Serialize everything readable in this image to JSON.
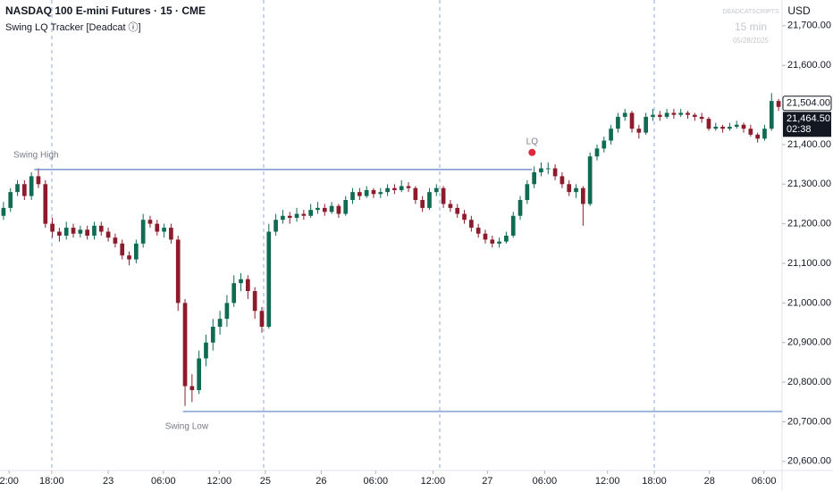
{
  "header": {
    "title": "NASDAQ 100 E-mini Futures · 15 · CME",
    "indicator": "Swing LQ Tracker [Deadcat ⓘ]"
  },
  "watermark": {
    "brand": "DEADCATSCRIPTS",
    "interval": "15 min",
    "date": "05/28/2025"
  },
  "currency": "USD",
  "chart_data": {
    "type": "candlestick",
    "up_color": "#0f6b52",
    "down_color": "#8c1c2c",
    "xlim": [
      0,
      112
    ],
    "ylim": [
      20559,
      21765
    ],
    "xticks": [
      {
        "value": 1.3,
        "label": "2:00"
      },
      {
        "value": 7.4,
        "label": "18:00"
      },
      {
        "value": 15.5,
        "label": "23"
      },
      {
        "value": 23.4,
        "label": "06:00"
      },
      {
        "value": 31.4,
        "label": "12:00"
      },
      {
        "value": 38,
        "label": "25"
      },
      {
        "value": 46,
        "label": "26"
      },
      {
        "value": 53.8,
        "label": "06:00"
      },
      {
        "value": 62,
        "label": "12:00"
      },
      {
        "value": 69.8,
        "label": "27"
      },
      {
        "value": 78,
        "label": "06:00"
      },
      {
        "value": 87,
        "label": "12:00"
      },
      {
        "value": 93.7,
        "label": "18:00"
      },
      {
        "value": 101.6,
        "label": "28"
      },
      {
        "value": 109.4,
        "label": "06:00"
      }
    ],
    "yticks": [
      {
        "value": 20600,
        "label": "20,600.00"
      },
      {
        "value": 20700,
        "label": "20,700.00"
      },
      {
        "value": 20800,
        "label": "20,800.00"
      },
      {
        "value": 20900,
        "label": "20,900.00"
      },
      {
        "value": 21000,
        "label": "21,000.00"
      },
      {
        "value": 21100,
        "label": "21,100.00"
      },
      {
        "value": 21200,
        "label": "21,200.00"
      },
      {
        "value": 21300,
        "label": "21,300.00"
      },
      {
        "value": 21400,
        "label": "21,400.00"
      },
      {
        "value": 21500,
        "label": "21,500.00"
      },
      {
        "value": 21600,
        "label": "21,600.00"
      },
      {
        "value": 21700,
        "label": "21,700.00"
      }
    ],
    "candles": [
      [
        21220,
        21255,
        21210,
        21240
      ],
      [
        21240,
        21290,
        21230,
        21280
      ],
      [
        21280,
        21310,
        21270,
        21300
      ],
      [
        21300,
        21310,
        21260,
        21270
      ],
      [
        21270,
        21330,
        21260,
        21320
      ],
      [
        21320,
        21340,
        21290,
        21300
      ],
      [
        21300,
        21310,
        21190,
        21200
      ],
      [
        21200,
        21215,
        21165,
        21180
      ],
      [
        21180,
        21190,
        21155,
        21170
      ],
      [
        21170,
        21205,
        21160,
        21190
      ],
      [
        21190,
        21200,
        21165,
        21175
      ],
      [
        21175,
        21195,
        21165,
        21185
      ],
      [
        21185,
        21195,
        21160,
        21170
      ],
      [
        21170,
        21205,
        21160,
        21195
      ],
      [
        21195,
        21205,
        21170,
        21180
      ],
      [
        21180,
        21190,
        21155,
        21165
      ],
      [
        21165,
        21175,
        21140,
        21150
      ],
      [
        21150,
        21160,
        21110,
        21120
      ],
      [
        21120,
        21130,
        21095,
        21110
      ],
      [
        21110,
        21160,
        21100,
        21150
      ],
      [
        21150,
        21225,
        21140,
        21210
      ],
      [
        21210,
        21220,
        21190,
        21200
      ],
      [
        21200,
        21210,
        21170,
        21180
      ],
      [
        21180,
        21200,
        21165,
        21190
      ],
      [
        21190,
        21200,
        21150,
        21160
      ],
      [
        21160,
        21170,
        20980,
        21000
      ],
      [
        21000,
        21010,
        20740,
        20790
      ],
      [
        20790,
        20820,
        20750,
        20780
      ],
      [
        20780,
        20880,
        20770,
        20860
      ],
      [
        20860,
        20920,
        20840,
        20900
      ],
      [
        20900,
        20960,
        20880,
        20940
      ],
      [
        20940,
        20980,
        20920,
        20960
      ],
      [
        20960,
        21020,
        20940,
        21000
      ],
      [
        21000,
        21070,
        20990,
        21050
      ],
      [
        21050,
        21075,
        21030,
        21060
      ],
      [
        21060,
        21070,
        21010,
        21030
      ],
      [
        21030,
        21040,
        20960,
        20980
      ],
      [
        20980,
        20990,
        20925,
        20940
      ],
      [
        20940,
        21200,
        20935,
        21180
      ],
      [
        21180,
        21225,
        21170,
        21210
      ],
      [
        21210,
        21235,
        21200,
        21220
      ],
      [
        21220,
        21230,
        21200,
        21215
      ],
      [
        21215,
        21240,
        21205,
        21225
      ],
      [
        21225,
        21235,
        21210,
        21220
      ],
      [
        21220,
        21250,
        21215,
        21235
      ],
      [
        21235,
        21255,
        21225,
        21240
      ],
      [
        21240,
        21250,
        21220,
        21230
      ],
      [
        21230,
        21255,
        21225,
        21245
      ],
      [
        21245,
        21250,
        21215,
        21225
      ],
      [
        21225,
        21270,
        21220,
        21260
      ],
      [
        21260,
        21290,
        21250,
        21280
      ],
      [
        21280,
        21290,
        21260,
        21270
      ],
      [
        21270,
        21295,
        21265,
        21285
      ],
      [
        21285,
        21290,
        21265,
        21275
      ],
      [
        21275,
        21290,
        21265,
        21280
      ],
      [
        21280,
        21300,
        21270,
        21290
      ],
      [
        21290,
        21300,
        21275,
        21285
      ],
      [
        21285,
        21310,
        21280,
        21295
      ],
      [
        21295,
        21305,
        21280,
        21290
      ],
      [
        21290,
        21295,
        21250,
        21260
      ],
      [
        21260,
        21270,
        21230,
        21240
      ],
      [
        21240,
        21290,
        21235,
        21280
      ],
      [
        21280,
        21300,
        21270,
        21290
      ],
      [
        21290,
        21295,
        21240,
        21250
      ],
      [
        21250,
        21260,
        21230,
        21240
      ],
      [
        21240,
        21250,
        21215,
        21225
      ],
      [
        21225,
        21235,
        21200,
        21210
      ],
      [
        21210,
        21220,
        21180,
        21190
      ],
      [
        21190,
        21200,
        21165,
        21175
      ],
      [
        21175,
        21185,
        21150,
        21160
      ],
      [
        21160,
        21170,
        21140,
        21150
      ],
      [
        21150,
        21165,
        21140,
        21155
      ],
      [
        21155,
        21180,
        21150,
        21170
      ],
      [
        21170,
        21230,
        21165,
        21220
      ],
      [
        21220,
        21270,
        21210,
        21260
      ],
      [
        21260,
        21310,
        21250,
        21300
      ],
      [
        21300,
        21345,
        21290,
        21330
      ],
      [
        21330,
        21355,
        21320,
        21340
      ],
      [
        21340,
        21355,
        21325,
        21340
      ],
      [
        21340,
        21350,
        21310,
        21320
      ],
      [
        21320,
        21330,
        21290,
        21300
      ],
      [
        21300,
        21310,
        21270,
        21280
      ],
      [
        21280,
        21300,
        21265,
        21290
      ],
      [
        21290,
        21295,
        21195,
        21250
      ],
      [
        21250,
        21380,
        21245,
        21370
      ],
      [
        21370,
        21400,
        21360,
        21390
      ],
      [
        21390,
        21420,
        21380,
        21410
      ],
      [
        21410,
        21450,
        21400,
        21440
      ],
      [
        21440,
        21480,
        21430,
        21470
      ],
      [
        21470,
        21490,
        21460,
        21480
      ],
      [
        21480,
        21485,
        21430,
        21440
      ],
      [
        21440,
        21450,
        21415,
        21430
      ],
      [
        21430,
        21480,
        21425,
        21470
      ],
      [
        21470,
        21490,
        21460,
        21475
      ],
      [
        21475,
        21485,
        21460,
        21470
      ],
      [
        21470,
        21490,
        21465,
        21480
      ],
      [
        21480,
        21490,
        21465,
        21475
      ],
      [
        21475,
        21490,
        21470,
        21480
      ],
      [
        21480,
        21485,
        21465,
        21475
      ],
      [
        21475,
        21480,
        21460,
        21470
      ],
      [
        21470,
        21480,
        21455,
        21465
      ],
      [
        21465,
        21470,
        21435,
        21440
      ],
      [
        21440,
        21455,
        21435,
        21445
      ],
      [
        21445,
        21450,
        21430,
        21440
      ],
      [
        21440,
        21455,
        21435,
        21445
      ],
      [
        21445,
        21460,
        21440,
        21450
      ],
      [
        21450,
        21455,
        21430,
        21440
      ],
      [
        21440,
        21450,
        21420,
        21425
      ],
      [
        21425,
        21430,
        21405,
        21415
      ],
      [
        21415,
        21450,
        21410,
        21440
      ],
      [
        21440,
        21530,
        21435,
        21510
      ],
      [
        21510,
        21515,
        21485,
        21495
      ]
    ],
    "levels": [
      {
        "label": "Swing High",
        "value": 21337,
        "x": [
          4.9,
          76.2
        ],
        "color": "#5b7fc7"
      },
      {
        "label": "Swing Low",
        "value": 20726,
        "x": [
          26.2,
          112
        ],
        "color": "#5b7fc7"
      }
    ],
    "marker": {
      "label": "LQ",
      "x": 76.2,
      "value": 21380,
      "color": "#e0283a"
    },
    "price_tags": [
      {
        "value": 21504,
        "label": "21,504.00"
      },
      {
        "value": 21464.5,
        "label": "21,464.50",
        "countdown": "02:38"
      }
    ]
  }
}
